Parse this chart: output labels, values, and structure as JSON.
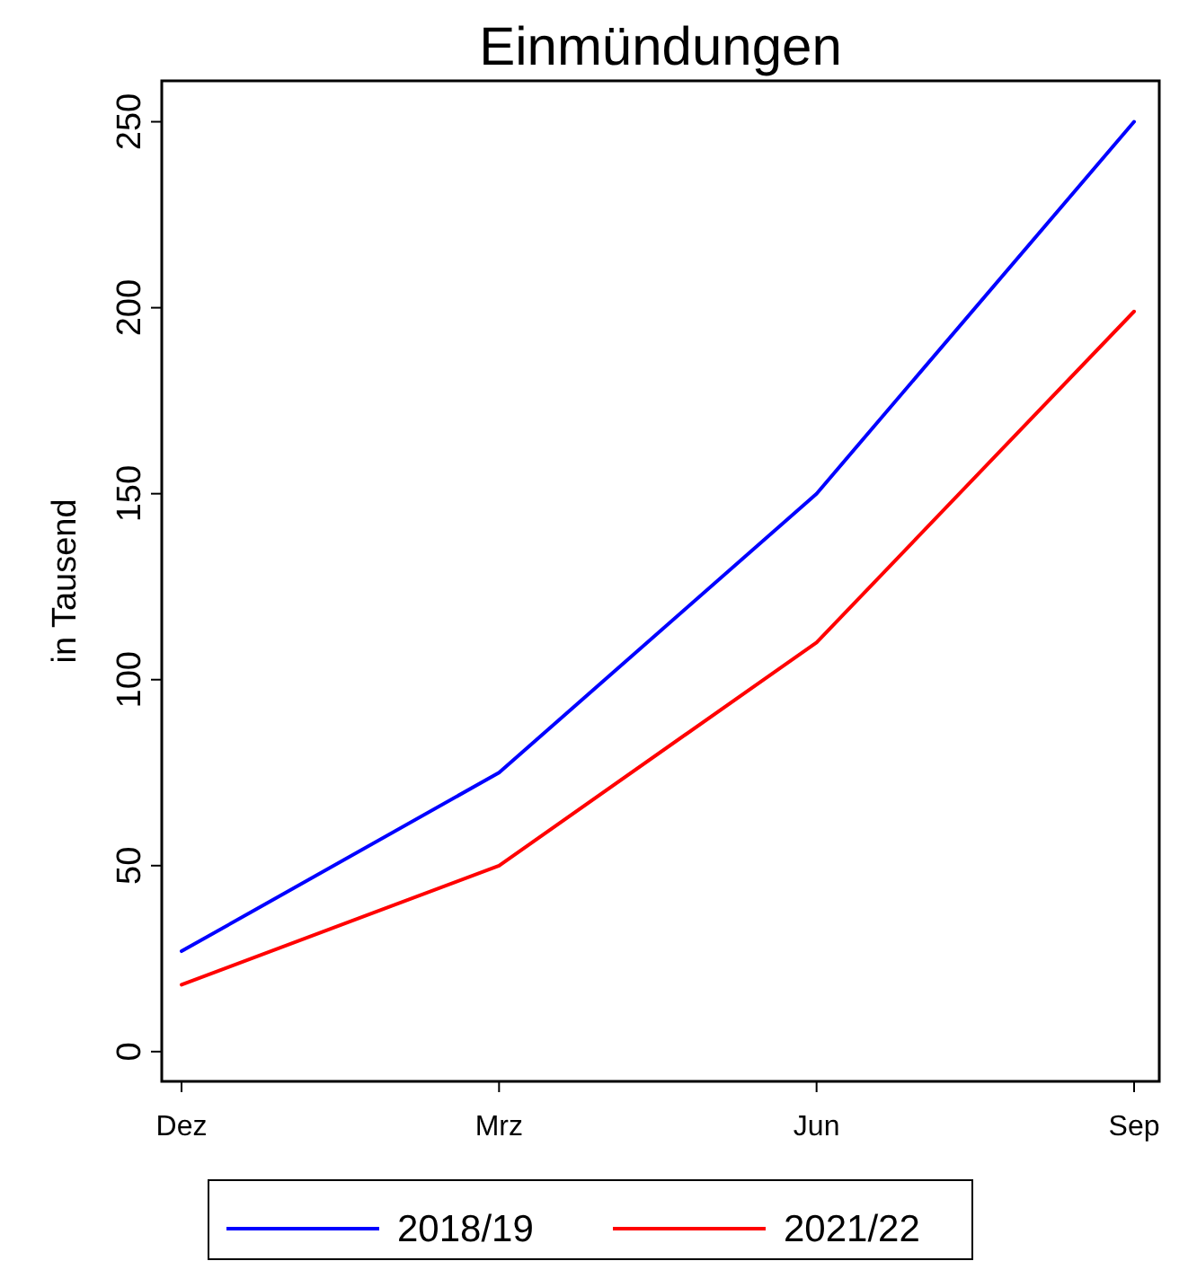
{
  "chart_data": {
    "type": "line",
    "title": "Einmündungen",
    "ylabel": "in Tausend",
    "categories": [
      "Dez",
      "Mrz",
      "Jun",
      "Sep"
    ],
    "series": [
      {
        "name": "2018/19",
        "color": "#0000ff",
        "values": [
          27,
          75,
          150,
          250
        ]
      },
      {
        "name": "2021/22",
        "color": "#ff0000",
        "values": [
          18,
          50,
          110,
          199
        ]
      }
    ],
    "ylim": [
      -8,
      261
    ],
    "yticks": [
      0,
      50,
      100,
      150,
      200,
      250
    ],
    "grid": false,
    "legend": "bottom",
    "marker": "none",
    "line_style": "solid"
  }
}
